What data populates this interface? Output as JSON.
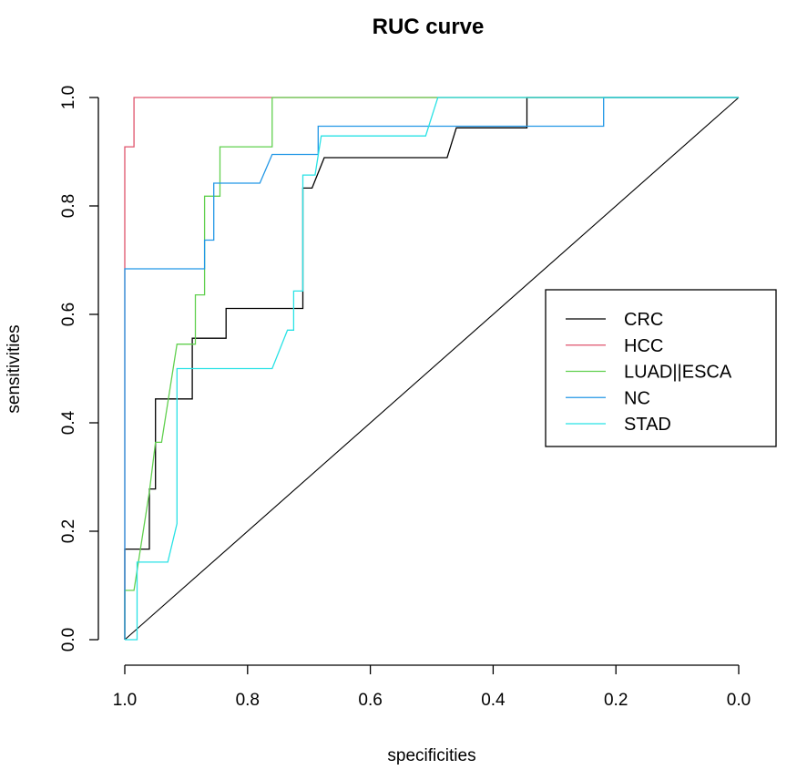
{
  "chart_data": {
    "type": "line",
    "title": "RUC curve",
    "xlabel": "specificities",
    "ylabel": "sensitivities",
    "x_reversed": true,
    "xlim": [
      1.0,
      0.0
    ],
    "ylim": [
      0.0,
      1.0
    ],
    "xticks": [
      1.0,
      0.8,
      0.6,
      0.4,
      0.2,
      0.0
    ],
    "xtick_labels": [
      "1.0",
      "0.8",
      "0.6",
      "0.4",
      "0.2",
      "0.0"
    ],
    "yticks": [
      0.0,
      0.2,
      0.4,
      0.6,
      0.8,
      1.0
    ],
    "ytick_labels": [
      "0.0",
      "0.2",
      "0.4",
      "0.6",
      "0.8",
      "1.0"
    ],
    "legend_position": "right",
    "reference_line": {
      "points": [
        [
          1.0,
          0.0
        ],
        [
          0.0,
          1.0
        ]
      ],
      "color": "#000000"
    },
    "series": [
      {
        "name": "CRC",
        "color": "#000000",
        "points": [
          [
            1.0,
            0.0
          ],
          [
            1.0,
            0.167
          ],
          [
            0.96,
            0.167
          ],
          [
            0.96,
            0.278
          ],
          [
            0.95,
            0.278
          ],
          [
            0.95,
            0.444
          ],
          [
            0.89,
            0.444
          ],
          [
            0.89,
            0.556
          ],
          [
            0.835,
            0.556
          ],
          [
            0.835,
            0.611
          ],
          [
            0.71,
            0.611
          ],
          [
            0.71,
            0.833
          ],
          [
            0.695,
            0.833
          ],
          [
            0.675,
            0.889
          ],
          [
            0.475,
            0.889
          ],
          [
            0.46,
            0.944
          ],
          [
            0.345,
            0.944
          ],
          [
            0.345,
            1.0
          ],
          [
            0.0,
            1.0
          ]
        ]
      },
      {
        "name": "HCC",
        "color": "#DF536B",
        "points": [
          [
            1.0,
            0.0
          ],
          [
            1.0,
            0.909
          ],
          [
            0.985,
            0.909
          ],
          [
            0.985,
            1.0
          ],
          [
            0.0,
            1.0
          ]
        ]
      },
      {
        "name": "LUAD||ESCA",
        "color": "#61D04F",
        "points": [
          [
            1.0,
            0.0
          ],
          [
            1.0,
            0.091
          ],
          [
            0.985,
            0.091
          ],
          [
            0.96,
            0.273
          ],
          [
            0.95,
            0.364
          ],
          [
            0.94,
            0.364
          ],
          [
            0.915,
            0.545
          ],
          [
            0.885,
            0.545
          ],
          [
            0.885,
            0.636
          ],
          [
            0.87,
            0.636
          ],
          [
            0.87,
            0.818
          ],
          [
            0.845,
            0.818
          ],
          [
            0.845,
            0.909
          ],
          [
            0.76,
            0.909
          ],
          [
            0.76,
            1.0
          ],
          [
            0.0,
            1.0
          ]
        ]
      },
      {
        "name": "NC",
        "color": "#2297E6",
        "points": [
          [
            1.0,
            0.0
          ],
          [
            1.0,
            0.684
          ],
          [
            0.87,
            0.684
          ],
          [
            0.87,
            0.737
          ],
          [
            0.855,
            0.737
          ],
          [
            0.855,
            0.842
          ],
          [
            0.78,
            0.842
          ],
          [
            0.76,
            0.895
          ],
          [
            0.685,
            0.895
          ],
          [
            0.685,
            0.947
          ],
          [
            0.22,
            0.947
          ],
          [
            0.22,
            1.0
          ],
          [
            0.0,
            1.0
          ]
        ]
      },
      {
        "name": "STAD",
        "color": "#28E2E5",
        "points": [
          [
            1.0,
            0.0
          ],
          [
            0.98,
            0.0
          ],
          [
            0.98,
            0.143
          ],
          [
            0.93,
            0.143
          ],
          [
            0.915,
            0.214
          ],
          [
            0.915,
            0.5
          ],
          [
            0.76,
            0.5
          ],
          [
            0.735,
            0.571
          ],
          [
            0.725,
            0.571
          ],
          [
            0.725,
            0.643
          ],
          [
            0.71,
            0.643
          ],
          [
            0.71,
            0.857
          ],
          [
            0.69,
            0.857
          ],
          [
            0.68,
            0.929
          ],
          [
            0.51,
            0.929
          ],
          [
            0.49,
            1.0
          ],
          [
            0.0,
            1.0
          ]
        ]
      }
    ]
  }
}
